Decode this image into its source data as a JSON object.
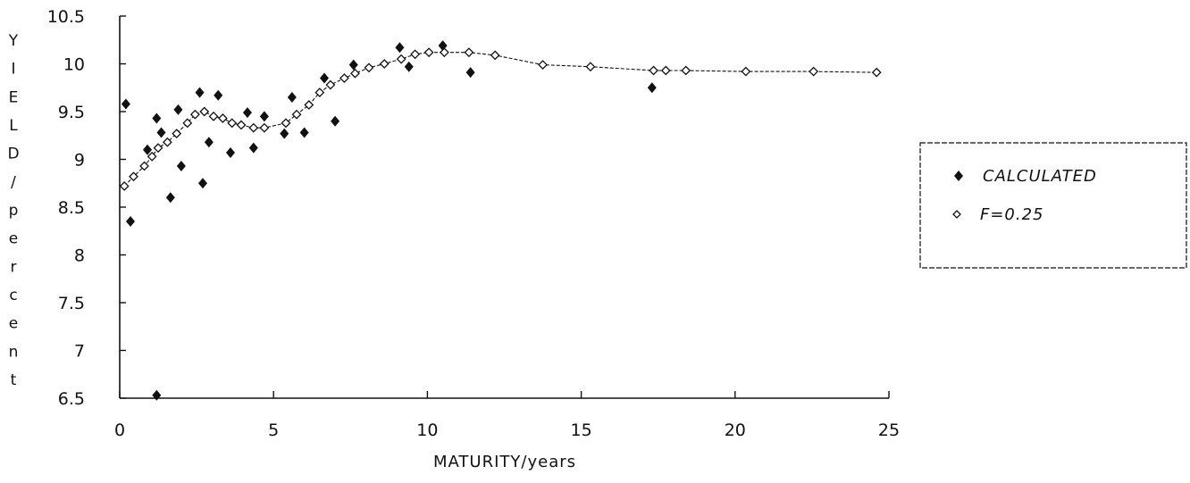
{
  "chart_data": {
    "type": "scatter",
    "title": "",
    "xlabel": "MATURITY/years",
    "ylabel": "YIELD/percent",
    "xlim": [
      0,
      25
    ],
    "ylim": [
      6.5,
      10.5
    ],
    "xticks": [
      0,
      5,
      10,
      15,
      20,
      25
    ],
    "xtick_labels": [
      "0",
      "5",
      "10",
      "15",
      "20",
      "25"
    ],
    "yticks": [
      6.5,
      7,
      7.5,
      8,
      8.5,
      9,
      9.5,
      10,
      10.5
    ],
    "ytick_labels": [
      "6.5",
      "7",
      "7.5",
      "8",
      "8.5",
      "9",
      "9.5",
      "10",
      "10.5"
    ],
    "grid": false,
    "legend_position": "right",
    "series": [
      {
        "name": "CALCULATED",
        "marker": "filled-diamond",
        "color": "#111111",
        "points": [
          [
            0.2,
            9.58
          ],
          [
            0.35,
            8.35
          ],
          [
            0.9,
            9.1
          ],
          [
            1.2,
            9.43
          ],
          [
            1.2,
            6.53
          ],
          [
            1.35,
            9.28
          ],
          [
            1.65,
            8.6
          ],
          [
            1.9,
            9.52
          ],
          [
            2.0,
            8.93
          ],
          [
            2.6,
            9.7
          ],
          [
            2.7,
            8.75
          ],
          [
            2.9,
            9.18
          ],
          [
            3.2,
            9.67
          ],
          [
            3.6,
            9.07
          ],
          [
            4.15,
            9.49
          ],
          [
            4.35,
            9.12
          ],
          [
            4.7,
            9.45
          ],
          [
            5.35,
            9.27
          ],
          [
            5.6,
            9.65
          ],
          [
            6.0,
            9.28
          ],
          [
            6.65,
            9.85
          ],
          [
            7.0,
            9.4
          ],
          [
            7.6,
            9.99
          ],
          [
            9.1,
            10.17
          ],
          [
            9.4,
            9.97
          ],
          [
            10.5,
            10.19
          ],
          [
            11.4,
            9.91
          ],
          [
            17.3,
            9.75
          ]
        ]
      },
      {
        "name": "F=0.25",
        "marker": "open-diamond",
        "color": "#111111",
        "points": [
          [
            0.15,
            8.72
          ],
          [
            0.45,
            8.82
          ],
          [
            0.8,
            8.93
          ],
          [
            1.05,
            9.03
          ],
          [
            1.25,
            9.12
          ],
          [
            1.55,
            9.18
          ],
          [
            1.85,
            9.27
          ],
          [
            2.2,
            9.38
          ],
          [
            2.45,
            9.47
          ],
          [
            2.75,
            9.5
          ],
          [
            3.05,
            9.45
          ],
          [
            3.35,
            9.43
          ],
          [
            3.65,
            9.38
          ],
          [
            3.95,
            9.36
          ],
          [
            4.35,
            9.33
          ],
          [
            4.7,
            9.33
          ],
          [
            5.4,
            9.38
          ],
          [
            5.75,
            9.47
          ],
          [
            6.15,
            9.57
          ],
          [
            6.5,
            9.7
          ],
          [
            6.85,
            9.78
          ],
          [
            7.3,
            9.85
          ],
          [
            7.65,
            9.9
          ],
          [
            8.1,
            9.96
          ],
          [
            8.6,
            10.0
          ],
          [
            9.15,
            10.05
          ],
          [
            9.6,
            10.1
          ],
          [
            10.05,
            10.12
          ],
          [
            10.55,
            10.12
          ],
          [
            11.35,
            10.12
          ],
          [
            12.2,
            10.09
          ],
          [
            13.75,
            9.99
          ],
          [
            15.3,
            9.97
          ],
          [
            17.35,
            9.93
          ],
          [
            17.75,
            9.93
          ],
          [
            18.4,
            9.93
          ],
          [
            20.35,
            9.92
          ],
          [
            22.55,
            9.92
          ],
          [
            24.6,
            9.91
          ]
        ]
      }
    ]
  }
}
